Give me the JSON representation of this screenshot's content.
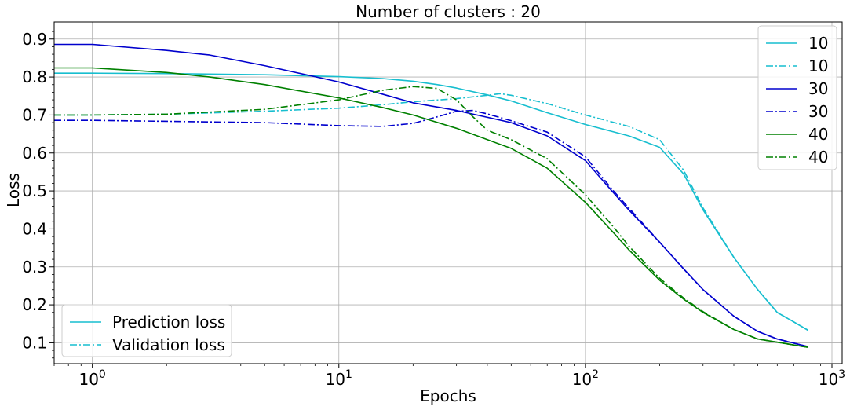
{
  "chart_data": {
    "type": "line",
    "title": "Number of clusters : 20",
    "xlabel": "Epochs",
    "ylabel": "Loss",
    "xscale": "log",
    "xlim": [
      0.7,
      1100
    ],
    "ylim": [
      0.045,
      0.945
    ],
    "x_ticks": [
      {
        "value": 1,
        "base": "10",
        "exp": "0"
      },
      {
        "value": 10,
        "base": "10",
        "exp": "1"
      },
      {
        "value": 100,
        "base": "10",
        "exp": "2"
      },
      {
        "value": 1000,
        "base": "10",
        "exp": "3"
      }
    ],
    "y_ticks": [
      0.1,
      0.2,
      0.3,
      0.4,
      0.5,
      0.6,
      0.7,
      0.8,
      0.9
    ],
    "y_tick_labels": [
      "0.1",
      "0.2",
      "0.3",
      "0.4",
      "0.5",
      "0.6",
      "0.7",
      "0.8",
      "0.9"
    ],
    "grid": true,
    "series": [
      {
        "name": "10",
        "color": "#17becf",
        "style": "solid",
        "x": [
          0.7,
          1,
          2,
          5,
          10,
          15,
          20,
          25,
          30,
          40,
          50,
          70,
          100,
          150,
          200,
          250,
          300,
          400,
          500,
          600,
          700,
          800
        ],
        "y": [
          0.81,
          0.81,
          0.809,
          0.806,
          0.801,
          0.796,
          0.789,
          0.78,
          0.771,
          0.753,
          0.737,
          0.706,
          0.675,
          0.645,
          0.615,
          0.545,
          0.45,
          0.325,
          0.24,
          0.18,
          0.155,
          0.133
        ]
      },
      {
        "name": "10",
        "color": "#17becf",
        "style": "dashdot",
        "x": [
          0.7,
          1,
          2,
          5,
          10,
          15,
          20,
          30,
          40,
          45,
          50,
          70,
          100,
          150,
          200,
          250,
          300,
          400,
          500,
          600,
          700,
          800
        ],
        "y": [
          0.7,
          0.7,
          0.702,
          0.71,
          0.718,
          0.727,
          0.735,
          0.743,
          0.752,
          0.756,
          0.752,
          0.73,
          0.7,
          0.67,
          0.635,
          0.555,
          0.455,
          0.325,
          0.24,
          0.18,
          0.155,
          0.133
        ]
      },
      {
        "name": "30",
        "color": "#0000cd",
        "style": "solid",
        "x": [
          0.7,
          1,
          2,
          3,
          5,
          10,
          15,
          20,
          30,
          50,
          70,
          100,
          130,
          150,
          200,
          250,
          300,
          400,
          500,
          600,
          800
        ],
        "y": [
          0.886,
          0.886,
          0.87,
          0.858,
          0.83,
          0.787,
          0.755,
          0.732,
          0.712,
          0.68,
          0.645,
          0.58,
          0.495,
          0.45,
          0.365,
          0.295,
          0.24,
          0.17,
          0.13,
          0.11,
          0.09
        ]
      },
      {
        "name": "30",
        "color": "#0000cd",
        "style": "dashdot",
        "x": [
          0.7,
          1,
          5,
          10,
          15,
          20,
          25,
          30,
          35,
          40,
          50,
          70,
          100,
          130,
          150,
          200,
          250,
          300,
          400,
          500,
          600,
          800
        ],
        "y": [
          0.686,
          0.686,
          0.68,
          0.672,
          0.67,
          0.678,
          0.695,
          0.71,
          0.712,
          0.703,
          0.685,
          0.655,
          0.59,
          0.5,
          0.455,
          0.365,
          0.295,
          0.24,
          0.17,
          0.13,
          0.11,
          0.09
        ]
      },
      {
        "name": "40",
        "color": "#008000",
        "style": "solid",
        "x": [
          0.7,
          1,
          2,
          3,
          5,
          10,
          15,
          20,
          30,
          40,
          50,
          70,
          100,
          130,
          150,
          200,
          250,
          300,
          400,
          500,
          800
        ],
        "y": [
          0.824,
          0.824,
          0.812,
          0.8,
          0.78,
          0.745,
          0.72,
          0.7,
          0.665,
          0.635,
          0.612,
          0.56,
          0.47,
          0.39,
          0.345,
          0.265,
          0.215,
          0.18,
          0.135,
          0.11,
          0.088
        ]
      },
      {
        "name": "40",
        "color": "#008000",
        "style": "dashdot",
        "x": [
          0.7,
          1,
          2,
          5,
          10,
          15,
          20,
          25,
          30,
          35,
          40,
          50,
          70,
          100,
          130,
          150,
          200,
          250,
          300,
          400,
          500,
          800
        ],
        "y": [
          0.7,
          0.7,
          0.702,
          0.715,
          0.74,
          0.765,
          0.775,
          0.77,
          0.74,
          0.695,
          0.66,
          0.635,
          0.585,
          0.49,
          0.405,
          0.355,
          0.27,
          0.218,
          0.182,
          0.135,
          0.11,
          0.088
        ]
      }
    ],
    "legend_series": {
      "placement": "top-right",
      "entries": [
        {
          "label": "10",
          "color": "#17becf",
          "style": "solid"
        },
        {
          "label": "10",
          "color": "#17becf",
          "style": "dashdot"
        },
        {
          "label": "30",
          "color": "#0000cd",
          "style": "solid"
        },
        {
          "label": "30",
          "color": "#0000cd",
          "style": "dashdot"
        },
        {
          "label": "40",
          "color": "#008000",
          "style": "solid"
        },
        {
          "label": "40",
          "color": "#008000",
          "style": "dashdot"
        }
      ]
    },
    "legend_loss": {
      "placement": "bottom-left",
      "entries": [
        {
          "label": "Prediction loss",
          "color": "#17becf",
          "style": "solid"
        },
        {
          "label": "Validation loss",
          "color": "#17becf",
          "style": "dashdot"
        }
      ]
    }
  }
}
